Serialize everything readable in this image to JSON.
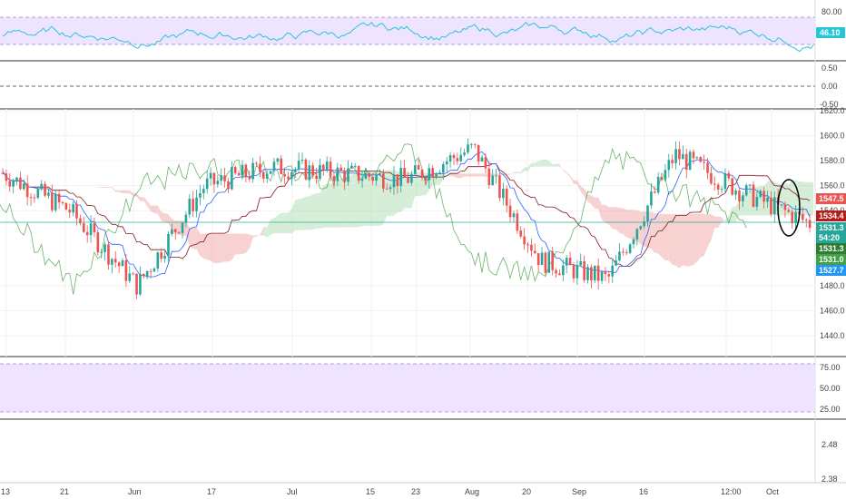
{
  "colors": {
    "up": "#26a69a",
    "down": "#ef5350",
    "tenkan": "#2962ff",
    "kijun": "#801922",
    "chikou": "#43a047",
    "cloud_bull": "#a5d6a7",
    "cloud_bear": "#ef9a9a",
    "rsi_line": "#26c6da",
    "rsi_band": "#e9d8ff",
    "hline": "#26a69a"
  },
  "x_axis": {
    "labels": [
      "13",
      "21",
      "Jun",
      "17",
      "Jul",
      "15",
      "23",
      "Aug",
      "20",
      "Sep",
      "16",
      "12:00",
      "Oct"
    ]
  },
  "panes": {
    "rsi_top": {
      "ticks": [
        "80.00",
        "46.10"
      ],
      "current_value": "46.10"
    },
    "osc": {
      "ticks": [
        "0.50",
        "0.00",
        "-0.50"
      ]
    },
    "price": {
      "ticks": [
        "1620.0",
        "1600.0",
        "1580.0",
        "1560.0",
        "1540.0",
        "1480.0",
        "1460.0",
        "1440.0"
      ],
      "badges": [
        {
          "text": "1547.5",
          "color": "#ef5350"
        },
        {
          "text": "1534.4",
          "color": "#b71c1c"
        },
        {
          "text": "1531.3",
          "color": "#26a69a"
        },
        {
          "text": "54:20",
          "color": "#26a69a"
        },
        {
          "text": "1531.3",
          "color": "#2e7d32"
        },
        {
          "text": "1531.0",
          "color": "#43a047"
        },
        {
          "text": "1527.7",
          "color": "#2196f3"
        }
      ]
    },
    "rsi_bottom": {
      "ticks": [
        "75.00",
        "50.00",
        "25.00"
      ]
    },
    "lower": {
      "ticks": [
        "2.48",
        "2.38"
      ]
    }
  },
  "chart_data": {
    "type": "line",
    "title": "",
    "y_range": [
      1440,
      1620
    ],
    "x": [
      "13",
      "21",
      "Jun",
      "17",
      "Jul",
      "15",
      "23",
      "Aug",
      "20",
      "Sep",
      "16",
      "12:00",
      "Oct"
    ],
    "series": [
      {
        "values": [
          1570,
          1540,
          1480,
          1560,
          1575,
          1570,
          1565,
          1590,
          1500,
          1485,
          1585,
          1555,
          1530
        ]
      }
    ],
    "current_price": 1531.3,
    "rsi_current": 46.1
  }
}
